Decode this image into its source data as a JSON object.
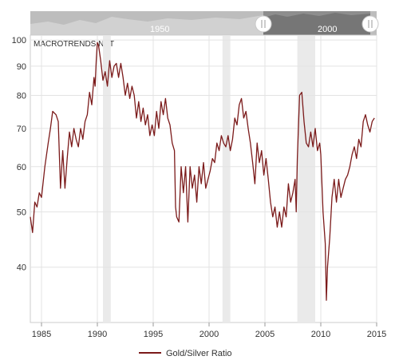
{
  "chart_data": {
    "type": "line",
    "title": "",
    "watermark": "MACROTRENDS.NET",
    "xlabel": "",
    "ylabel": "",
    "xlim": [
      1984.0,
      2015.0
    ],
    "ylim": [
      32,
      102
    ],
    "y_scale": "log",
    "grid": true,
    "legend_position": "bottom-center",
    "x_ticks": [
      "1985",
      "1990",
      "1995",
      "2000",
      "2005",
      "2010",
      "2015"
    ],
    "y_ticks": [
      "40",
      "50",
      "60",
      "70",
      "80",
      "90",
      "100"
    ],
    "recession_bands": [
      [
        1990.5,
        1991.2
      ],
      [
        2001.2,
        2001.9
      ],
      [
        2007.9,
        2009.5
      ]
    ],
    "navigator": {
      "labels": [
        "1950",
        "2000"
      ],
      "selected_range": [
        1984.0,
        2015.0
      ]
    },
    "colors": {
      "series": "#7b1a1a",
      "recession": "#eaeaea",
      "grid": "#e3e3e3",
      "navigator_bg": "#bdbdbd",
      "navigator_selected": "#8e8e8e"
    },
    "series": [
      {
        "name": "Gold/Silver Ratio",
        "points": [
          [
            1984.0,
            49
          ],
          [
            1984.2,
            46
          ],
          [
            1984.4,
            52
          ],
          [
            1984.6,
            51
          ],
          [
            1984.8,
            54
          ],
          [
            1985.0,
            53
          ],
          [
            1985.3,
            60
          ],
          [
            1985.6,
            66
          ],
          [
            1985.8,
            70
          ],
          [
            1986.0,
            75
          ],
          [
            1986.3,
            74
          ],
          [
            1986.5,
            72
          ],
          [
            1986.7,
            55
          ],
          [
            1986.9,
            64
          ],
          [
            1987.1,
            55
          ],
          [
            1987.3,
            62
          ],
          [
            1987.5,
            69
          ],
          [
            1987.7,
            65
          ],
          [
            1987.9,
            70
          ],
          [
            1988.1,
            67
          ],
          [
            1988.3,
            65
          ],
          [
            1988.5,
            70
          ],
          [
            1988.7,
            67
          ],
          [
            1988.9,
            72
          ],
          [
            1989.1,
            74
          ],
          [
            1989.3,
            81
          ],
          [
            1989.5,
            77
          ],
          [
            1989.7,
            86
          ],
          [
            1989.8,
            83
          ],
          [
            1989.9,
            92
          ],
          [
            1990.0,
            99
          ],
          [
            1990.1,
            98
          ],
          [
            1990.3,
            92
          ],
          [
            1990.5,
            85
          ],
          [
            1990.7,
            88
          ],
          [
            1990.9,
            83
          ],
          [
            1991.1,
            92
          ],
          [
            1991.3,
            86
          ],
          [
            1991.5,
            90
          ],
          [
            1991.7,
            91
          ],
          [
            1991.9,
            86
          ],
          [
            1992.1,
            91
          ],
          [
            1992.3,
            86
          ],
          [
            1992.5,
            80
          ],
          [
            1992.7,
            84
          ],
          [
            1992.9,
            79
          ],
          [
            1993.1,
            83
          ],
          [
            1993.3,
            80
          ],
          [
            1993.5,
            73
          ],
          [
            1993.7,
            78
          ],
          [
            1993.9,
            72
          ],
          [
            1994.1,
            76
          ],
          [
            1994.3,
            71
          ],
          [
            1994.5,
            74
          ],
          [
            1994.7,
            68
          ],
          [
            1994.9,
            71
          ],
          [
            1995.1,
            68
          ],
          [
            1995.3,
            75
          ],
          [
            1995.5,
            70
          ],
          [
            1995.7,
            78
          ],
          [
            1995.9,
            74
          ],
          [
            1996.1,
            79
          ],
          [
            1996.3,
            73
          ],
          [
            1996.5,
            71
          ],
          [
            1996.7,
            66
          ],
          [
            1996.9,
            64
          ],
          [
            1997.0,
            51
          ],
          [
            1997.1,
            49
          ],
          [
            1997.3,
            48
          ],
          [
            1997.5,
            60
          ],
          [
            1997.7,
            54
          ],
          [
            1997.9,
            60
          ],
          [
            1998.1,
            48
          ],
          [
            1998.3,
            60
          ],
          [
            1998.5,
            55
          ],
          [
            1998.7,
            58
          ],
          [
            1998.9,
            52
          ],
          [
            1999.1,
            60
          ],
          [
            1999.3,
            56
          ],
          [
            1999.5,
            61
          ],
          [
            1999.7,
            55
          ],
          [
            1999.9,
            57
          ],
          [
            2000.1,
            59
          ],
          [
            2000.3,
            62
          ],
          [
            2000.5,
            61
          ],
          [
            2000.7,
            66
          ],
          [
            2000.9,
            64
          ],
          [
            2001.1,
            68
          ],
          [
            2001.3,
            66
          ],
          [
            2001.5,
            65
          ],
          [
            2001.7,
            68
          ],
          [
            2001.9,
            64
          ],
          [
            2002.1,
            67
          ],
          [
            2002.3,
            73
          ],
          [
            2002.5,
            71
          ],
          [
            2002.7,
            77
          ],
          [
            2002.9,
            79
          ],
          [
            2003.1,
            73
          ],
          [
            2003.3,
            75
          ],
          [
            2003.5,
            70
          ],
          [
            2003.7,
            66
          ],
          [
            2003.9,
            61
          ],
          [
            2004.1,
            56
          ],
          [
            2004.3,
            66
          ],
          [
            2004.5,
            61
          ],
          [
            2004.7,
            64
          ],
          [
            2004.9,
            58
          ],
          [
            2005.1,
            62
          ],
          [
            2005.3,
            57
          ],
          [
            2005.5,
            52
          ],
          [
            2005.7,
            49
          ],
          [
            2005.9,
            51
          ],
          [
            2006.1,
            47
          ],
          [
            2006.3,
            50
          ],
          [
            2006.5,
            47
          ],
          [
            2006.7,
            51
          ],
          [
            2006.9,
            49
          ],
          [
            2007.1,
            56
          ],
          [
            2007.3,
            52
          ],
          [
            2007.5,
            54
          ],
          [
            2007.7,
            57
          ],
          [
            2007.8,
            50
          ],
          [
            2007.9,
            62
          ],
          [
            2008.1,
            80
          ],
          [
            2008.3,
            81
          ],
          [
            2008.5,
            72
          ],
          [
            2008.7,
            66
          ],
          [
            2008.9,
            65
          ],
          [
            2009.1,
            69
          ],
          [
            2009.3,
            65
          ],
          [
            2009.5,
            70
          ],
          [
            2009.7,
            64
          ],
          [
            2009.9,
            66
          ],
          [
            2010.0,
            63
          ],
          [
            2010.2,
            50
          ],
          [
            2010.4,
            44
          ],
          [
            2010.5,
            35
          ],
          [
            2010.6,
            40
          ],
          [
            2010.8,
            45
          ],
          [
            2011.0,
            53
          ],
          [
            2011.2,
            57
          ],
          [
            2011.4,
            52
          ],
          [
            2011.6,
            57
          ],
          [
            2011.8,
            53
          ],
          [
            2012.0,
            55
          ],
          [
            2012.2,
            57
          ],
          [
            2012.4,
            58
          ],
          [
            2012.6,
            60
          ],
          [
            2012.8,
            63
          ],
          [
            2013.0,
            65
          ],
          [
            2013.2,
            62
          ],
          [
            2013.4,
            67
          ],
          [
            2013.6,
            65
          ],
          [
            2013.8,
            72
          ],
          [
            2014.0,
            74
          ],
          [
            2014.2,
            71
          ],
          [
            2014.4,
            69
          ],
          [
            2014.6,
            72
          ],
          [
            2014.8,
            73
          ]
        ]
      }
    ]
  }
}
